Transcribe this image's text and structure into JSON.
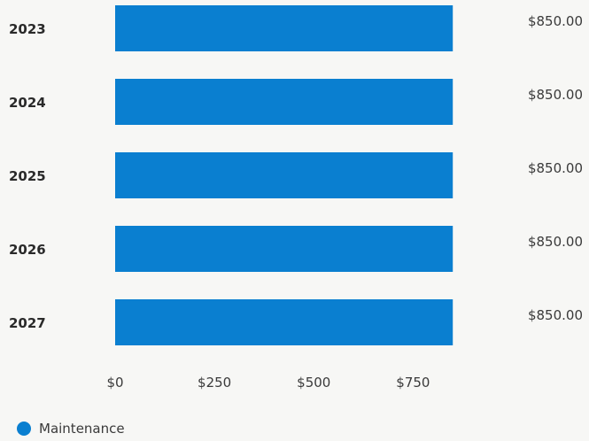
{
  "chart_data": {
    "type": "bar",
    "orientation": "horizontal",
    "categories": [
      "2023",
      "2024",
      "2025",
      "2026",
      "2027"
    ],
    "series": [
      {
        "name": "Maintenance",
        "values": [
          850,
          850,
          850,
          850,
          850
        ],
        "value_labels": [
          "$850.00",
          "$850.00",
          "$850.00",
          "$850.00",
          "$850.00"
        ],
        "color": "#0a7fd0"
      }
    ],
    "x_ticks": [
      0,
      250,
      500,
      750
    ],
    "x_tick_labels": [
      "$0",
      "$250",
      "$500",
      "$750"
    ],
    "xlim": [
      0,
      850
    ],
    "grid": false,
    "legend_placement": "bottom-left"
  }
}
